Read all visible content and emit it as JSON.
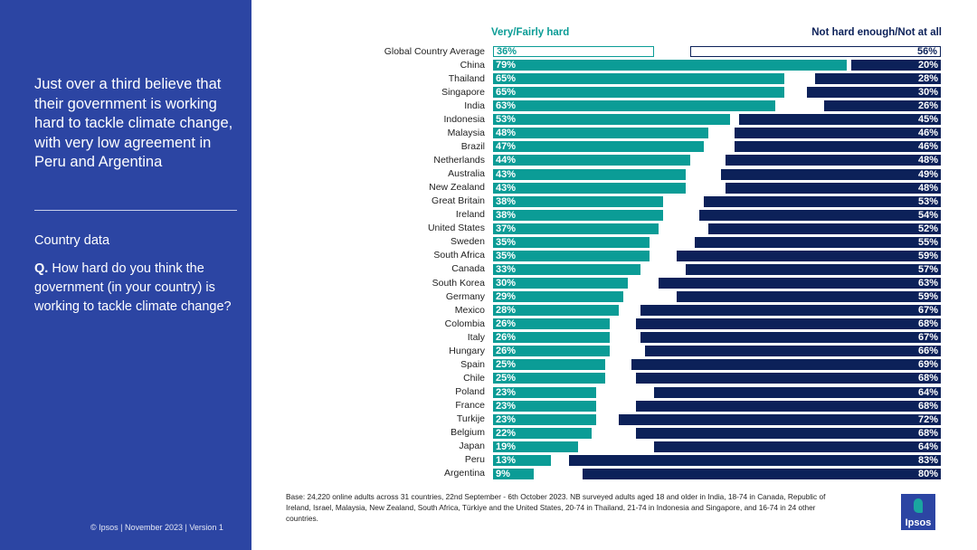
{
  "left_panel": {
    "headline": "Just over a third believe that their government is working hard to tackle climate change, with very low agreement in Peru and Argentina",
    "section": "Country data",
    "question_prefix": "Q.",
    "question": "How hard do you think the government (in your country) is working to tackle climate change?",
    "footer": "© Ipsos | November 2023 | Version 1"
  },
  "base_note": "Base: 24,220 online adults across 31 countries, 22nd September - 6th October 2023. NB surveyed adults aged 18 and older in India, 18-74 in Canada, Republic of Ireland, Israel, Malaysia, New Zealand, South Africa, Türkiye and the United States, 20-74 in Thailand, 21-74 in Indonesia and Singapore, and 16-74 in 24 other countries.",
  "logo_text": "Ipsos",
  "colors": {
    "hard": "#0b9c96",
    "not_hard": "#0c2159",
    "panel": "#2c45a3"
  },
  "chart_data": {
    "type": "bar",
    "orientation": "horizontal-diverging",
    "legend": [
      "Very/Fairly hard",
      "Not hard enough/Not at all"
    ],
    "categories": [
      "Global Country Average",
      "China",
      "Thailand",
      "Singapore",
      "India",
      "Indonesia",
      "Malaysia",
      "Brazil",
      "Netherlands",
      "Australia",
      "New Zealand",
      "Great Britain",
      "Ireland",
      "United States",
      "Sweden",
      "South Africa",
      "Canada",
      "South Korea",
      "Germany",
      "Mexico",
      "Colombia",
      "Italy",
      "Hungary",
      "Spain",
      "Chile",
      "Poland",
      "France",
      "Turkije",
      "Belgium",
      "Japan",
      "Peru",
      "Argentina"
    ],
    "series": [
      {
        "name": "Very/Fairly hard",
        "values": [
          36,
          79,
          65,
          65,
          63,
          53,
          48,
          47,
          44,
          43,
          43,
          38,
          38,
          37,
          35,
          35,
          33,
          30,
          29,
          28,
          26,
          26,
          26,
          25,
          25,
          23,
          23,
          23,
          22,
          19,
          13,
          9
        ]
      },
      {
        "name": "Not hard enough/Not at all",
        "values": [
          56,
          20,
          28,
          30,
          26,
          45,
          46,
          46,
          48,
          49,
          48,
          53,
          54,
          52,
          55,
          59,
          57,
          63,
          59,
          67,
          68,
          67,
          66,
          69,
          68,
          64,
          68,
          72,
          68,
          64,
          83,
          80
        ]
      }
    ],
    "xlim": [
      0,
      100
    ],
    "unit": "%"
  }
}
